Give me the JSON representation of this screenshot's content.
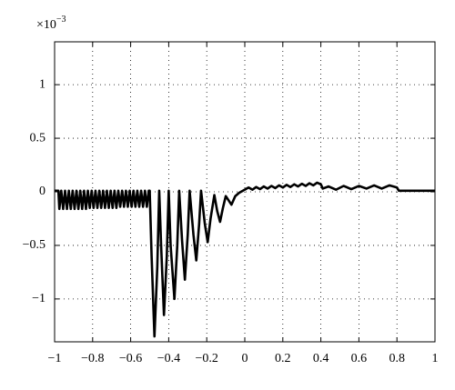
{
  "chart_data": {
    "type": "line",
    "y_scale": {
      "base": "×10",
      "exponent": "−3"
    },
    "xlim": [
      -1,
      1
    ],
    "ylim": [
      -1.4,
      1.4
    ],
    "xticks": [
      {
        "value": -1,
        "label": "−1"
      },
      {
        "value": -0.8,
        "label": "−0.8"
      },
      {
        "value": -0.6,
        "label": "−0.6"
      },
      {
        "value": -0.4,
        "label": "−0.4"
      },
      {
        "value": -0.2,
        "label": "−0.2"
      },
      0,
      0.2,
      0.4,
      0.6,
      0.8,
      1
    ],
    "yticks": [
      {
        "value": -1,
        "label": "−1"
      },
      {
        "value": -0.5,
        "label": "−0.5"
      },
      0,
      0.5,
      1
    ],
    "grid": true,
    "color": "#000000",
    "x": [
      -1,
      -0.98,
      -0.975,
      -0.965,
      -0.955,
      -0.945,
      -0.935,
      -0.925,
      -0.915,
      -0.905,
      -0.895,
      -0.885,
      -0.875,
      -0.865,
      -0.855,
      -0.845,
      -0.835,
      -0.825,
      -0.815,
      -0.805,
      -0.795,
      -0.785,
      -0.775,
      -0.765,
      -0.755,
      -0.745,
      -0.735,
      -0.725,
      -0.715,
      -0.705,
      -0.695,
      -0.685,
      -0.675,
      -0.665,
      -0.655,
      -0.645,
      -0.635,
      -0.625,
      -0.615,
      -0.605,
      -0.595,
      -0.585,
      -0.575,
      -0.565,
      -0.555,
      -0.545,
      -0.535,
      -0.525,
      -0.515,
      -0.505,
      -0.5,
      -0.49,
      -0.475,
      -0.46,
      -0.45,
      -0.44,
      -0.425,
      -0.41,
      -0.4,
      -0.39,
      -0.37,
      -0.355,
      -0.345,
      -0.33,
      -0.315,
      -0.3,
      -0.29,
      -0.27,
      -0.255,
      -0.24,
      -0.23,
      -0.21,
      -0.195,
      -0.18,
      -0.16,
      -0.145,
      -0.13,
      -0.115,
      -0.1,
      -0.085,
      -0.07,
      -0.05,
      -0.03,
      0,
      0.02,
      0.04,
      0.06,
      0.08,
      0.1,
      0.12,
      0.14,
      0.16,
      0.18,
      0.2,
      0.22,
      0.24,
      0.26,
      0.28,
      0.3,
      0.32,
      0.34,
      0.36,
      0.38,
      0.4,
      0.41,
      0.44,
      0.48,
      0.52,
      0.56,
      0.6,
      0.64,
      0.68,
      0.72,
      0.76,
      0.8,
      0.81,
      1
    ],
    "values": [
      0.01,
      0.01,
      -0.16,
      0.01,
      -0.16,
      0.01,
      -0.16,
      0.01,
      -0.16,
      0.01,
      -0.16,
      0.01,
      -0.16,
      0.01,
      -0.16,
      0.01,
      -0.16,
      0.01,
      -0.15,
      0.01,
      -0.15,
      0.01,
      -0.15,
      0.01,
      -0.15,
      0.01,
      -0.15,
      0.01,
      -0.15,
      0.01,
      -0.15,
      0.01,
      -0.15,
      0.01,
      -0.14,
      0.01,
      -0.14,
      0.01,
      -0.14,
      0.01,
      -0.14,
      0.01,
      -0.14,
      0.01,
      -0.14,
      0.01,
      -0.14,
      0.01,
      -0.14,
      0.01,
      0.01,
      -0.6,
      -1.35,
      -0.7,
      0.01,
      -0.5,
      -1.15,
      -0.6,
      0.01,
      -0.5,
      -1.0,
      -0.5,
      0.01,
      -0.45,
      -0.82,
      -0.4,
      0.01,
      -0.4,
      -0.64,
      -0.3,
      0.01,
      -0.3,
      -0.47,
      -0.25,
      -0.03,
      -0.18,
      -0.28,
      -0.15,
      -0.04,
      -0.08,
      -0.12,
      -0.04,
      -0.01,
      0.02,
      0.04,
      0.02,
      0.045,
      0.025,
      0.05,
      0.03,
      0.055,
      0.035,
      0.06,
      0.04,
      0.065,
      0.045,
      0.07,
      0.05,
      0.075,
      0.055,
      0.08,
      0.06,
      0.085,
      0.07,
      0.03,
      0.05,
      0.02,
      0.055,
      0.025,
      0.055,
      0.03,
      0.06,
      0.03,
      0.06,
      0.04,
      0.01,
      0.01
    ]
  }
}
